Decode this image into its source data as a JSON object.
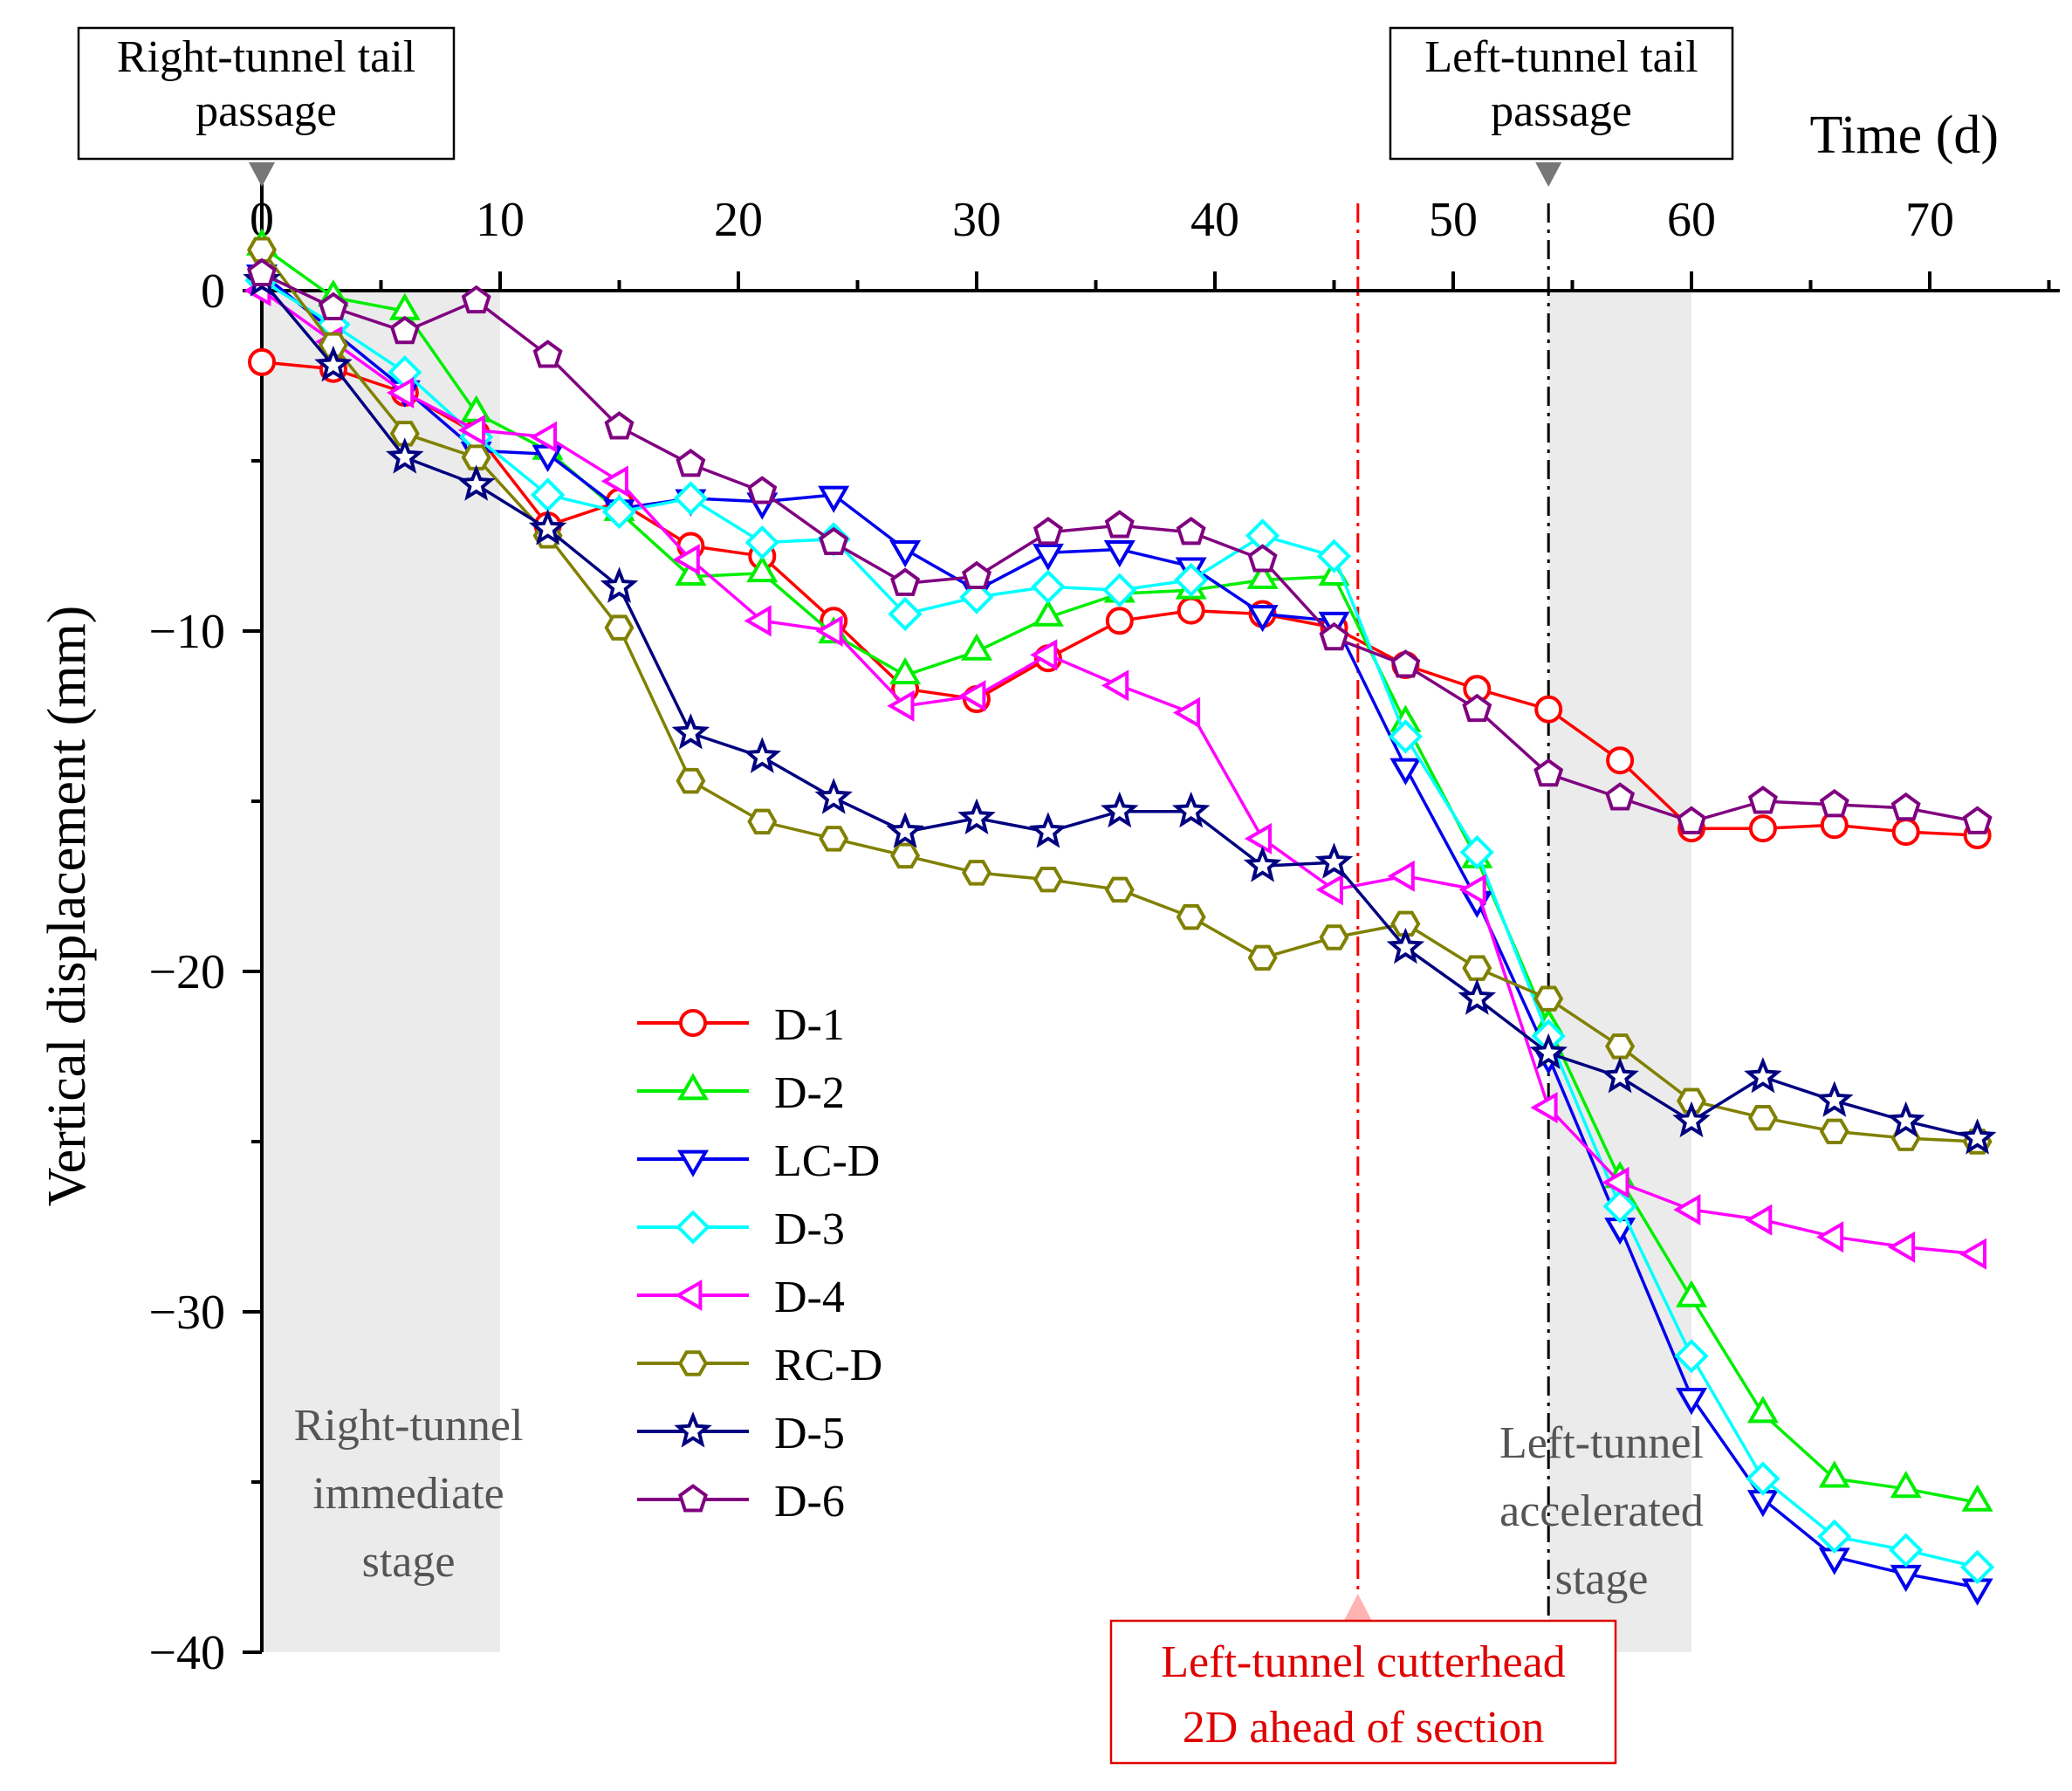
{
  "chart_data": {
    "type": "line",
    "title": "",
    "xlabel": "Time (d)",
    "ylabel": "Vertical displacement (mm)",
    "xlim": [
      0,
      75
    ],
    "ylim": [
      -40,
      2
    ],
    "xticks": [
      0,
      10,
      20,
      30,
      40,
      50,
      60,
      70
    ],
    "yticks": [
      0,
      -10,
      -20,
      -30,
      -40
    ],
    "ytick_labels": [
      "0",
      "−10",
      "−20",
      "−30",
      "−40"
    ],
    "legend_position": "center-left",
    "x": [
      0,
      3,
      6,
      9,
      12,
      15,
      18,
      21,
      24,
      27,
      30,
      33,
      36,
      39,
      42,
      45,
      48,
      51,
      54,
      57,
      60,
      63,
      66,
      69,
      72
    ],
    "series": [
      {
        "name": "D-1",
        "color": "#ff0000",
        "marker": "circle",
        "values": [
          -2.1,
          -2.3,
          -3.0,
          -4.2,
          -6.9,
          -6.2,
          -7.5,
          -7.8,
          -9.7,
          -11.7,
          -12.0,
          -10.8,
          -9.7,
          -9.4,
          -9.5,
          -9.9,
          -11.0,
          -11.7,
          -12.3,
          -13.8,
          -15.8,
          -15.8,
          -15.7,
          -15.9,
          -16.0
        ]
      },
      {
        "name": "D-2",
        "color": "#00ee00",
        "marker": "triangle-up",
        "values": [
          1.3,
          -0.2,
          -0.6,
          -3.6,
          -4.7,
          -6.5,
          -8.4,
          -8.3,
          -10.1,
          -11.3,
          -10.6,
          -9.6,
          -8.9,
          -8.8,
          -8.5,
          -8.4,
          -12.7,
          -16.7,
          -21.6,
          -26.1,
          -29.6,
          -33.0,
          -34.9,
          -35.2,
          -35.6
        ]
      },
      {
        "name": "LC-D",
        "color": "#0000ee",
        "marker": "triangle-down",
        "values": [
          0.5,
          -1.2,
          -2.9,
          -4.7,
          -4.8,
          -6.4,
          -6.1,
          -6.2,
          -6.0,
          -7.6,
          -8.8,
          -7.7,
          -7.6,
          -8.1,
          -9.5,
          -9.7,
          -14.0,
          -17.9,
          -22.5,
          -27.5,
          -32.5,
          -35.5,
          -37.2,
          -37.7,
          -38.1
        ]
      },
      {
        "name": "D-3",
        "color": "#00ffff",
        "marker": "diamond",
        "values": [
          0.3,
          -1.0,
          -2.4,
          -4.3,
          -6.0,
          -6.5,
          -6.1,
          -7.4,
          -7.3,
          -9.5,
          -9.0,
          -8.7,
          -8.8,
          -8.5,
          -7.2,
          -7.8,
          -13.1,
          -16.5,
          -21.9,
          -26.9,
          -31.3,
          -34.9,
          -36.6,
          -37.0,
          -37.5
        ]
      },
      {
        "name": "D-4",
        "color": "#ff00ff",
        "marker": "triangle-left",
        "values": [
          0.0,
          -1.5,
          -3.0,
          -4.1,
          -4.3,
          -5.6,
          -7.9,
          -9.7,
          -10.0,
          -12.2,
          -11.9,
          -10.7,
          -11.6,
          -12.4,
          -16.1,
          -17.6,
          -17.2,
          -17.6,
          -24.0,
          -26.2,
          -27.0,
          -27.3,
          -27.8,
          -28.1,
          -28.3
        ]
      },
      {
        "name": "RC-D",
        "color": "#808000",
        "marker": "hexagon",
        "values": [
          1.2,
          -1.6,
          -4.2,
          -4.9,
          -7.2,
          -9.9,
          -14.4,
          -15.6,
          -16.1,
          -16.6,
          -17.1,
          -17.3,
          -17.6,
          -18.4,
          -19.6,
          -19.0,
          -18.6,
          -19.9,
          -20.8,
          -22.2,
          -23.8,
          -24.3,
          -24.7,
          -24.9,
          -25.0
        ]
      },
      {
        "name": "D-5",
        "color": "#000080",
        "marker": "star",
        "values": [
          0.3,
          -2.2,
          -4.9,
          -5.7,
          -7.0,
          -8.7,
          -13.0,
          -13.7,
          -14.9,
          -15.9,
          -15.5,
          -15.9,
          -15.3,
          -15.3,
          -16.9,
          -16.8,
          -19.3,
          -20.8,
          -22.4,
          -23.1,
          -24.4,
          -23.1,
          -23.8,
          -24.4,
          -24.9
        ]
      },
      {
        "name": "D-6",
        "color": "#800080",
        "marker": "pentagon",
        "values": [
          0.5,
          -0.5,
          -1.2,
          -0.3,
          -1.9,
          -4.0,
          -5.1,
          -5.9,
          -7.4,
          -8.6,
          -8.4,
          -7.1,
          -6.9,
          -7.1,
          -7.9,
          -10.2,
          -11.0,
          -12.3,
          -14.2,
          -14.9,
          -15.6,
          -15.0,
          -15.1,
          -15.2,
          -15.6
        ]
      }
    ],
    "shaded_regions": [
      {
        "from": 0,
        "to": 10,
        "label_lines": [
          "Right-tunnel",
          "immediate",
          "stage"
        ]
      },
      {
        "from": 54,
        "to": 60,
        "label_lines": [
          "Left-tunnel",
          "accelerated",
          "stage"
        ]
      }
    ],
    "vertical_lines": [
      {
        "x": 46,
        "color": "#ff0000",
        "label_lines": [
          "Left-tunnel cutterhead",
          "2D ahead of section"
        ]
      },
      {
        "x": 54,
        "color": "#000000"
      }
    ],
    "box_annotations": [
      {
        "x": 0,
        "label_lines": [
          "Right-tunnel tail",
          "passage"
        ]
      },
      {
        "x": 54,
        "label_lines": [
          "Left-tunnel tail",
          "passage"
        ]
      }
    ]
  }
}
